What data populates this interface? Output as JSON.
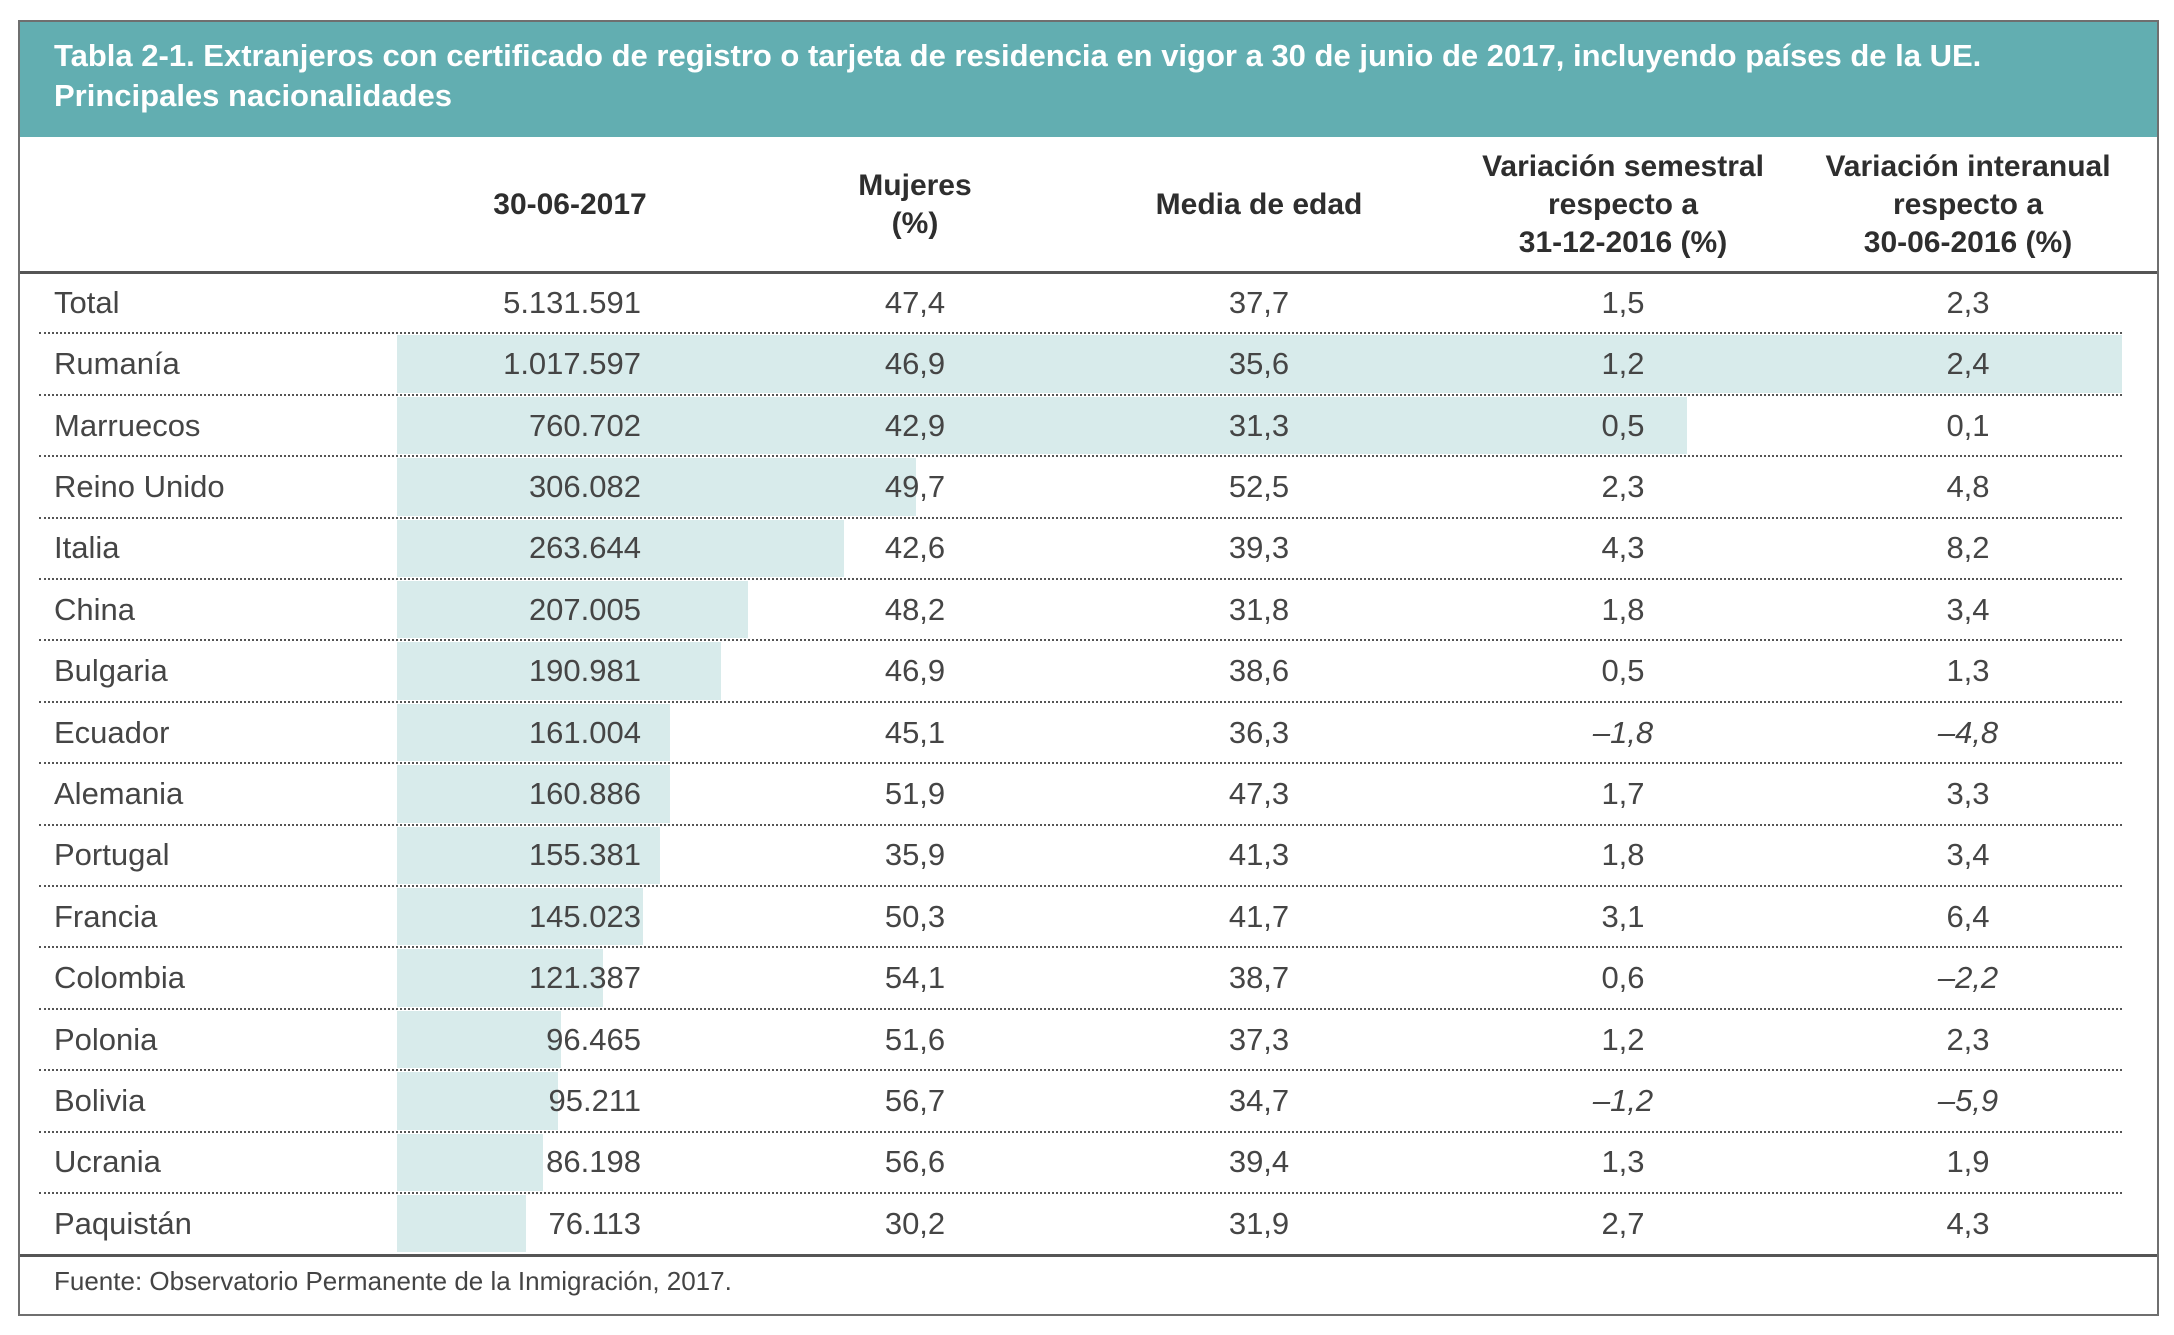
{
  "title": "Tabla 2-1. Extranjeros con certificado de registro o tarjeta de residencia en vigor a 30 de junio de 2017, incluyendo países de la UE.\nPrincipales nacionalidades",
  "table": {
    "headers": [
      "30-06-2017",
      "Mujeres\n(%)",
      "Media de edad",
      "Variación semestral\nrespecto a\n31-12-2016 (%)",
      "Variación interanual\nrespecto a\n30-06-2016 (%)"
    ],
    "total": {
      "name": "Total",
      "population": "5.131.591",
      "values": [
        "47,4",
        "37,7",
        "1,5",
        "2,3"
      ]
    },
    "rows": [
      {
        "name": "Rumanía",
        "population": {
          "value": 1017597,
          "label": "1.017.597"
        },
        "values": [
          "46,9",
          "35,6",
          "1,2",
          "2,4"
        ]
      },
      {
        "name": "Marruecos",
        "population": {
          "value": 760702,
          "label": "760.702"
        },
        "values": [
          "42,9",
          "31,3",
          "0,5",
          "0,1"
        ]
      },
      {
        "name": "Reino Unido",
        "population": {
          "value": 306082,
          "label": "306.082"
        },
        "values": [
          "49,7",
          "52,5",
          "2,3",
          "4,8"
        ]
      },
      {
        "name": "Italia",
        "population": {
          "value": 263644,
          "label": "263.644"
        },
        "values": [
          "42,6",
          "39,3",
          "4,3",
          "8,2"
        ]
      },
      {
        "name": "China",
        "population": {
          "value": 207005,
          "label": "207.005"
        },
        "values": [
          "48,2",
          "31,8",
          "1,8",
          "3,4"
        ]
      },
      {
        "name": "Bulgaria",
        "population": {
          "value": 190981,
          "label": "190.981"
        },
        "values": [
          "46,9",
          "38,6",
          "0,5",
          "1,3"
        ]
      },
      {
        "name": "Ecuador",
        "population": {
          "value": 161004,
          "label": "161.004"
        },
        "values": [
          "45,1",
          "36,3",
          "–1,8",
          "–4,8"
        ]
      },
      {
        "name": "Alemania",
        "population": {
          "value": 160886,
          "label": "160.886"
        },
        "values": [
          "51,9",
          "47,3",
          "1,7",
          "3,3"
        ]
      },
      {
        "name": "Portugal",
        "population": {
          "value": 155381,
          "label": "155.381"
        },
        "values": [
          "35,9",
          "41,3",
          "1,8",
          "3,4"
        ]
      },
      {
        "name": "Francia",
        "population": {
          "value": 145023,
          "label": "145.023"
        },
        "values": [
          "50,3",
          "41,7",
          "3,1",
          "6,4"
        ]
      },
      {
        "name": "Colombia",
        "population": {
          "value": 121387,
          "label": "121.387"
        },
        "values": [
          "54,1",
          "38,7",
          "0,6",
          "–2,2"
        ]
      },
      {
        "name": "Polonia",
        "population": {
          "value": 96465,
          "label": "96.465"
        },
        "values": [
          "51,6",
          "37,3",
          "1,2",
          "2,3"
        ]
      },
      {
        "name": "Bolivia",
        "population": {
          "value": 95211,
          "label": "95.211"
        },
        "values": [
          "56,7",
          "34,7",
          "–1,2",
          "–5,9"
        ]
      },
      {
        "name": "Ucrania",
        "population": {
          "value": 86198,
          "label": "86.198"
        },
        "values": [
          "56,6",
          "39,4",
          "1,3",
          "1,9"
        ]
      },
      {
        "name": "Paquistán",
        "population": {
          "value": 76113,
          "label": "76.113"
        },
        "values": [
          "30,2",
          "31,9",
          "2,7",
          "4,3"
        ]
      }
    ]
  },
  "source": "Fuente: Observatorio Permanente de la Inmigración, 2017."
}
